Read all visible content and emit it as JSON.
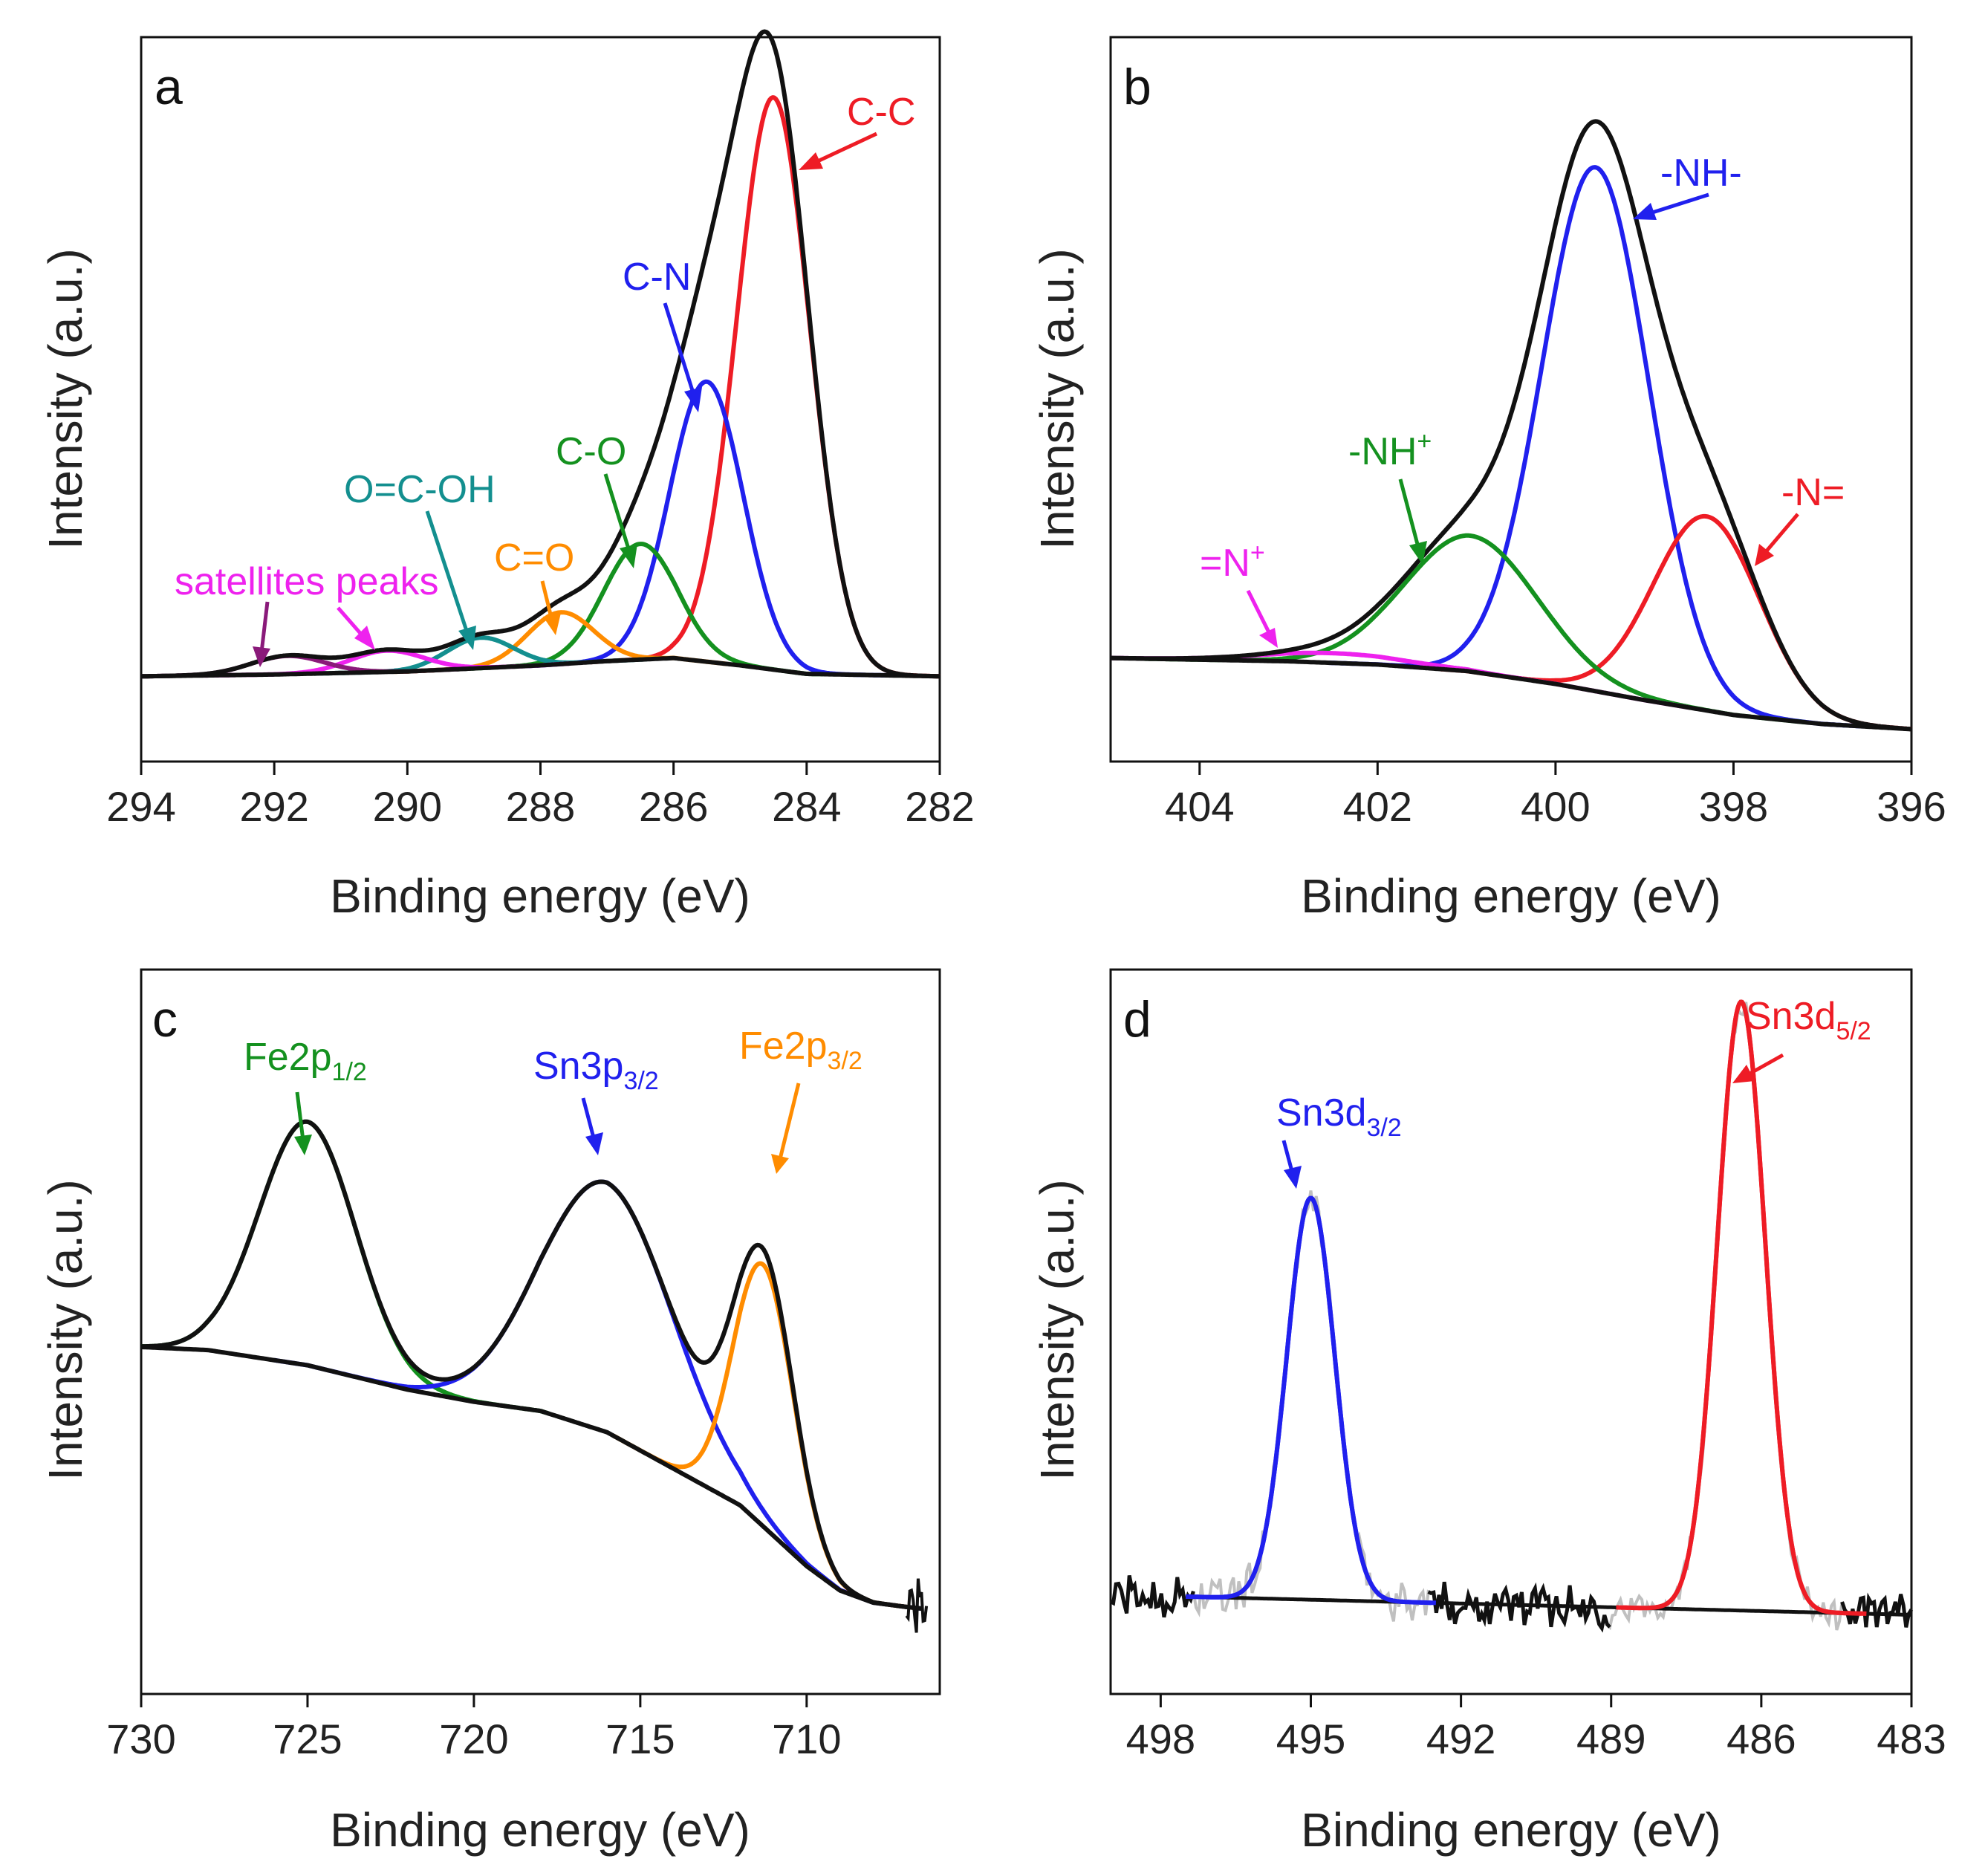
{
  "figure": {
    "panels": [
      "a",
      "b",
      "c",
      "d"
    ]
  },
  "colors": {
    "black": "#111111",
    "red": "#ee1c25",
    "blue": "#2020ee",
    "green": "#14911f",
    "orange": "#ff8c00",
    "teal": "#138f8f",
    "magenta": "#ee22ee",
    "purple": "#8a1a7a",
    "gray": "#c0c0c0"
  },
  "chart_data": [
    {
      "type": "line",
      "panel": "a",
      "xlabel": "Binding energy (eV)",
      "ylabel": "Intensity (a.u.)",
      "xlim": [
        294,
        282
      ],
      "ylim": [
        -0.14,
        1.05
      ],
      "xticks": [
        294,
        292,
        290,
        288,
        286,
        284,
        282
      ],
      "baseline": {
        "x": [
          294,
          292,
          290,
          288,
          287,
          286,
          285,
          284,
          282
        ],
        "y": [
          0,
          0.003,
          0.008,
          0.018,
          0.025,
          0.03,
          0.018,
          0.004,
          0
        ]
      },
      "series": [
        {
          "name": "C-C",
          "color": "red",
          "center": 284.5,
          "height": 0.94,
          "width": 0.55
        },
        {
          "name": "C-N",
          "color": "blue",
          "center": 285.5,
          "height": 0.46,
          "width": 0.55
        },
        {
          "name": "C-O",
          "color": "green",
          "center": 286.5,
          "height": 0.19,
          "width": 0.55
        },
        {
          "name": "C=O",
          "color": "orange",
          "center": 287.7,
          "height": 0.085,
          "width": 0.5
        },
        {
          "name": "O=C-OH",
          "color": "teal",
          "center": 288.9,
          "height": 0.05,
          "width": 0.5
        },
        {
          "name": "satellite 1",
          "color": "magenta",
          "center": 290.3,
          "height": 0.035,
          "width": 0.55
        },
        {
          "name": "satellite 2",
          "color": "purple",
          "center": 291.8,
          "height": 0.03,
          "width": 0.55
        }
      ],
      "annotations": [
        {
          "label": "C-C",
          "color": "red"
        },
        {
          "label": "C-N",
          "color": "blue"
        },
        {
          "label": "C-O",
          "color": "green"
        },
        {
          "label": "C=O",
          "color": "orange"
        },
        {
          "label": "O=C-OH",
          "color": "teal"
        },
        {
          "label": "satellites peaks",
          "color": "magenta"
        }
      ]
    },
    {
      "type": "line",
      "panel": "b",
      "xlabel": "Binding energy (eV)",
      "ylabel": "Intensity (a.u.)",
      "xlim": [
        405,
        396
      ],
      "ylim": [
        -0.05,
        1.07
      ],
      "xticks": [
        404,
        402,
        400,
        398,
        396
      ],
      "baseline": {
        "x": [
          405,
          403,
          402,
          401,
          400,
          399,
          398,
          397,
          396
        ],
        "y": [
          0.11,
          0.105,
          0.1,
          0.09,
          0.07,
          0.045,
          0.022,
          0.008,
          0
        ]
      },
      "series": [
        {
          "name": "-NH-",
          "color": "blue",
          "center": 399.55,
          "height": 0.81,
          "width": 0.6
        },
        {
          "name": "-N=",
          "color": "red",
          "center": 398.3,
          "height": 0.3,
          "width": 0.6
        },
        {
          "name": "-NH+",
          "color": "green",
          "center": 400.95,
          "height": 0.21,
          "width": 0.75
        },
        {
          "name": "=N+",
          "color": "magenta",
          "center": 402.5,
          "height": 0.015,
          "width": 0.8
        }
      ],
      "annotations": [
        {
          "label": "-NH-",
          "color": "blue"
        },
        {
          "label": "-N=",
          "color": "red"
        },
        {
          "label": "-NH",
          "sup": "+",
          "color": "green"
        },
        {
          "label": "=N",
          "sup": "+",
          "color": "magenta"
        }
      ]
    },
    {
      "type": "line",
      "panel": "c",
      "xlabel": "Binding energy (eV)",
      "ylabel": "Intensity (a.u.)",
      "xlim": [
        730,
        706
      ],
      "ylim": [
        -0.14,
        1.05
      ],
      "xticks": [
        730,
        725,
        720,
        715,
        710
      ],
      "baseline": {
        "x": [
          730,
          728,
          725,
          722,
          720,
          718,
          716,
          714,
          712,
          710,
          709,
          708,
          707,
          706.5
        ],
        "y": [
          0.43,
          0.425,
          0.4,
          0.36,
          0.34,
          0.325,
          0.29,
          0.23,
          0.17,
          0.07,
          0.03,
          0.01,
          0.003,
          0
        ]
      },
      "series": [
        {
          "name": "Fe2p1/2",
          "color": "green",
          "center": 725.0,
          "height": 0.4,
          "width": 1.45
        },
        {
          "name": "Sn3p3/2",
          "color": "blue",
          "center": 716.0,
          "height": 0.41,
          "width": 2.0
        },
        {
          "name": "Fe2p3/2",
          "color": "orange",
          "center": 711.3,
          "height": 0.43,
          "width": 0.9
        }
      ],
      "annotations": [
        {
          "label": "Fe2p",
          "sub": "1/2",
          "color": "green"
        },
        {
          "label": "Sn3p",
          "sub": "3/2",
          "color": "blue"
        },
        {
          "label": "Fe2p",
          "sub": "3/2",
          "color": "orange"
        }
      ]
    },
    {
      "type": "line",
      "panel": "d",
      "xlabel": "Binding energy (eV)",
      "ylabel": "Intensity (a.u.)",
      "xlim": [
        499,
        483
      ],
      "ylim": [
        -0.13,
        1.06
      ],
      "xticks": [
        498,
        495,
        492,
        489,
        486,
        483
      ],
      "baseline": {
        "x": [
          497.5,
          483
        ],
        "y": [
          0.03,
          0
        ]
      },
      "series": [
        {
          "name": "Sn3d3/2",
          "color": "blue",
          "center": 495.0,
          "height": 0.66,
          "width": 0.48
        },
        {
          "name": "Sn3d5/2",
          "color": "red",
          "center": 486.4,
          "height": 1.0,
          "width": 0.48
        }
      ],
      "annotations": [
        {
          "label": "Sn3d",
          "sub": "3/2",
          "color": "blue"
        },
        {
          "label": "Sn3d",
          "sub": "5/2",
          "color": "red"
        }
      ]
    }
  ]
}
